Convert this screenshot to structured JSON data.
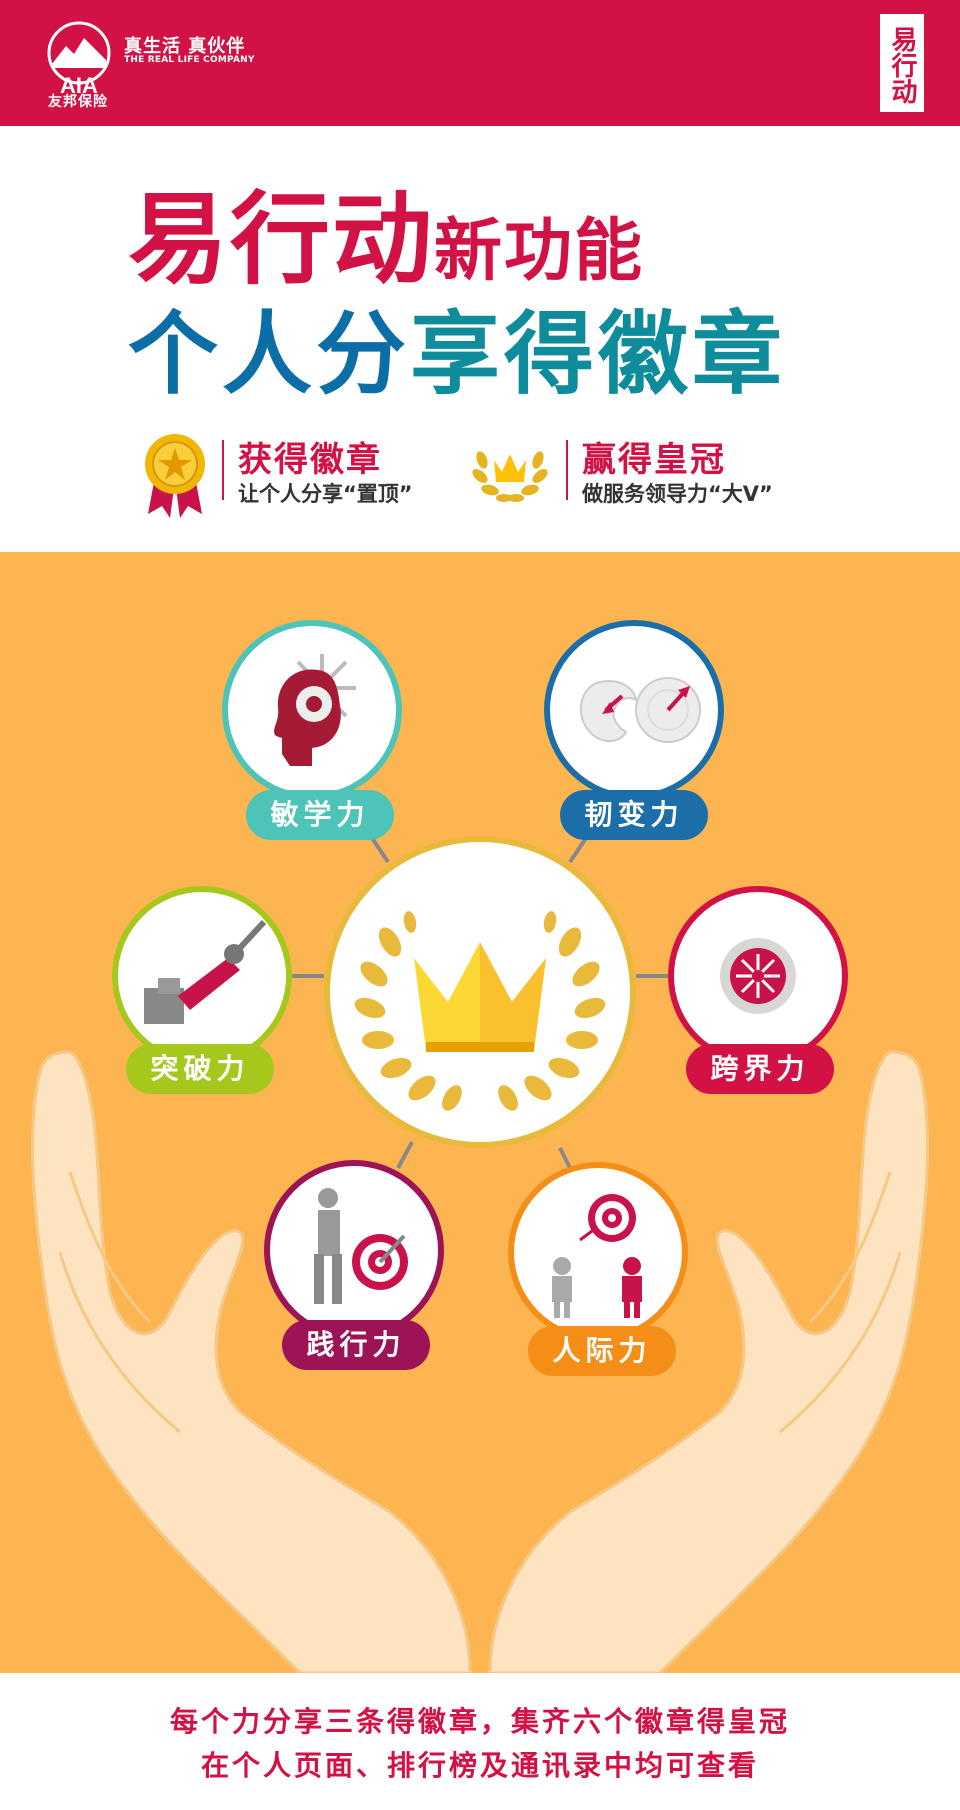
{
  "header": {
    "logo_text": "AIA",
    "company_cn": "友邦保险",
    "slogan_cn": "真生活 真伙伴",
    "slogan_en": "THE REAL LIFE COMPANY",
    "app_badge": "易行动",
    "bg_color": "#d21245"
  },
  "title": {
    "line1_main": "易行动",
    "line1_sub": "新功能",
    "line2_part1": "个人分",
    "line2_part2": "享得徽章"
  },
  "features": [
    {
      "icon": "medal-icon",
      "title": "获得徽章",
      "desc": "让个人分享“置顶”"
    },
    {
      "icon": "crown-laurel-icon",
      "title": "赢得皇冠",
      "desc": "做服务领导力“大V”"
    }
  ],
  "badges": [
    {
      "label": "敏学力",
      "icon": "head-gear-icon",
      "color": "#4ec3b7"
    },
    {
      "label": "韧变力",
      "icon": "transform-arrows-icon",
      "color": "#1b6ea7"
    },
    {
      "label": "突破力",
      "icon": "breakthrough-icon",
      "color": "#a6c81d"
    },
    {
      "label": "跨界力",
      "icon": "cross-border-icon",
      "color": "#d21245"
    },
    {
      "label": "践行力",
      "icon": "target-walker-icon",
      "color": "#9c1456"
    },
    {
      "label": "人际力",
      "icon": "people-network-icon",
      "color": "#f58e16"
    }
  ],
  "center": {
    "icon": "crown-icon",
    "crown_color": "#fdd835"
  },
  "footer": {
    "line1": "每个力分享三条得徽章，集齐六个徽章得皇冠",
    "line2": "在个人页面、排行榜及通讯录中均可查看"
  },
  "colors": {
    "panel": "#fdb551",
    "hands": "#fde3bf"
  }
}
